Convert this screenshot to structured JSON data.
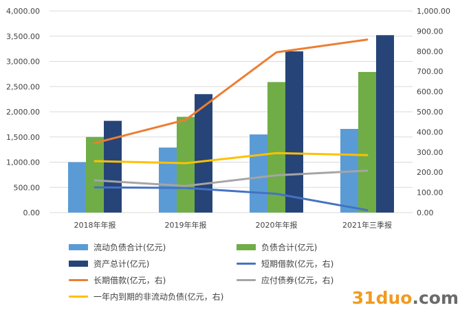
{
  "chart_data": {
    "type": "bar+line",
    "categories": [
      "2018年年报",
      "2019年年报",
      "2020年年报",
      "2021年三季报"
    ],
    "y_left": {
      "ticks": [
        "0.00",
        "500.00",
        "1,000.00",
        "1,500.00",
        "2,000.00",
        "2,500.00",
        "3,000.00",
        "3,500.00",
        "4,000.00"
      ],
      "range": [
        0,
        4000
      ]
    },
    "y_right": {
      "ticks": [
        "0.00",
        "100.00",
        "200.00",
        "300.00",
        "400.00",
        "500.00",
        "600.00",
        "700.00",
        "800.00",
        "900.00",
        "1,000.00"
      ],
      "range": [
        0,
        1000
      ]
    },
    "bar_series": [
      {
        "name": "流动负债合计(亿元)",
        "color": "#5b9bd5",
        "values": [
          1000,
          1290,
          1550,
          1660
        ]
      },
      {
        "name": "负债合计(亿元)",
        "color": "#70ad47",
        "values": [
          1500,
          1900,
          2590,
          2790
        ]
      },
      {
        "name": "资产总计(亿元)",
        "color": "#264478",
        "values": [
          1820,
          2350,
          3200,
          3520
        ]
      }
    ],
    "line_series": [
      {
        "name": "短期借款(亿元，右)",
        "color": "#4472c4",
        "values": [
          125,
          122,
          93,
          12
        ]
      },
      {
        "name": "长期借款(亿元，右)",
        "color": "#ed7d31",
        "values": [
          345,
          460,
          795,
          858
        ]
      },
      {
        "name": "应付债券(亿元，右)",
        "color": "#a5a5a5",
        "values": [
          160,
          132,
          185,
          208
        ]
      },
      {
        "name": "一年内到期的非流动负债(亿元，右)",
        "color": "#ffc000",
        "values": [
          255,
          245,
          295,
          285
        ]
      }
    ],
    "grid": true,
    "legend_position": "bottom"
  },
  "watermark": {
    "part1": "31duo",
    "part2": ".com"
  }
}
